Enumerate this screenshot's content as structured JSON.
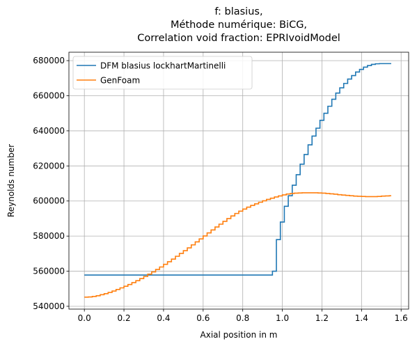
{
  "chart_data": {
    "type": "line",
    "title_lines": [
      "f: blasius,",
      "Méthode numérique: BiCG,",
      "Correlation void fraction: EPRIvoidModel"
    ],
    "xlabel": "Axial position in m",
    "ylabel": "Reynolds number",
    "xlim": [
      -0.078,
      1.638
    ],
    "ylim": [
      538400,
      684800
    ],
    "xticks": [
      0.0,
      0.2,
      0.4,
      0.6,
      0.8,
      1.0,
      1.2,
      1.4,
      1.6
    ],
    "xtick_labels": [
      "0.0",
      "0.2",
      "0.4",
      "0.6",
      "0.8",
      "1.0",
      "1.2",
      "1.4",
      "1.6"
    ],
    "yticks": [
      540000,
      560000,
      580000,
      600000,
      620000,
      640000,
      660000,
      680000
    ],
    "ytick_labels": [
      "540000",
      "560000",
      "580000",
      "600000",
      "620000",
      "640000",
      "660000",
      "680000"
    ],
    "grid": true,
    "legend_position": "upper-left",
    "series": [
      {
        "name": "DFM blasius lockhartMartinelli",
        "color": "#1f77b4",
        "step": true,
        "x": [
          0.0,
          0.95,
          0.97,
          0.99,
          1.01,
          1.03,
          1.05,
          1.07,
          1.09,
          1.11,
          1.13,
          1.15,
          1.17,
          1.19,
          1.21,
          1.23,
          1.25,
          1.27,
          1.29,
          1.31,
          1.33,
          1.35,
          1.37,
          1.39,
          1.41,
          1.43,
          1.45,
          1.47,
          1.49,
          1.51,
          1.53,
          1.55
        ],
        "y": [
          557800,
          560000,
          578000,
          588000,
          597000,
          603000,
          609000,
          615000,
          621000,
          626500,
          632000,
          637000,
          641500,
          646000,
          650000,
          654000,
          658000,
          661500,
          664500,
          667000,
          669500,
          671500,
          673500,
          675000,
          676300,
          677200,
          677900,
          678200,
          678300,
          678300,
          678300,
          678300
        ]
      },
      {
        "name": "GenFoam",
        "color": "#ff7f0e",
        "step": true,
        "x": [
          0.0,
          0.02,
          0.04,
          0.06,
          0.08,
          0.1,
          0.12,
          0.14,
          0.16,
          0.18,
          0.2,
          0.22,
          0.24,
          0.26,
          0.28,
          0.3,
          0.32,
          0.34,
          0.36,
          0.38,
          0.4,
          0.42,
          0.44,
          0.46,
          0.48,
          0.5,
          0.52,
          0.54,
          0.56,
          0.58,
          0.6,
          0.62,
          0.64,
          0.66,
          0.68,
          0.7,
          0.72,
          0.74,
          0.76,
          0.78,
          0.8,
          0.82,
          0.84,
          0.86,
          0.88,
          0.9,
          0.92,
          0.94,
          0.96,
          0.98,
          1.0,
          1.02,
          1.04,
          1.06,
          1.08,
          1.1,
          1.12,
          1.14,
          1.16,
          1.18,
          1.2,
          1.22,
          1.24,
          1.26,
          1.28,
          1.3,
          1.32,
          1.34,
          1.36,
          1.38,
          1.4,
          1.42,
          1.44,
          1.46,
          1.48,
          1.5,
          1.52,
          1.54,
          1.55
        ],
        "y": [
          545200,
          545300,
          545600,
          546000,
          546600,
          547200,
          547900,
          548700,
          549600,
          550500,
          551400,
          552400,
          553500,
          554600,
          555800,
          557000,
          558300,
          559600,
          561000,
          562400,
          563900,
          565400,
          566900,
          568500,
          570100,
          571700,
          573300,
          575000,
          576700,
          578400,
          580100,
          581800,
          583500,
          585200,
          586800,
          588400,
          590000,
          591500,
          592900,
          594200,
          595400,
          596500,
          597500,
          598400,
          599300,
          600100,
          600900,
          601600,
          602300,
          602900,
          603500,
          604000,
          604300,
          604500,
          604600,
          604700,
          604700,
          604700,
          604700,
          604600,
          604500,
          604300,
          604100,
          603900,
          603600,
          603400,
          603200,
          603000,
          602800,
          602700,
          602600,
          602500,
          602500,
          602500,
          602600,
          602800,
          602900,
          603000,
          603000
        ]
      }
    ]
  }
}
